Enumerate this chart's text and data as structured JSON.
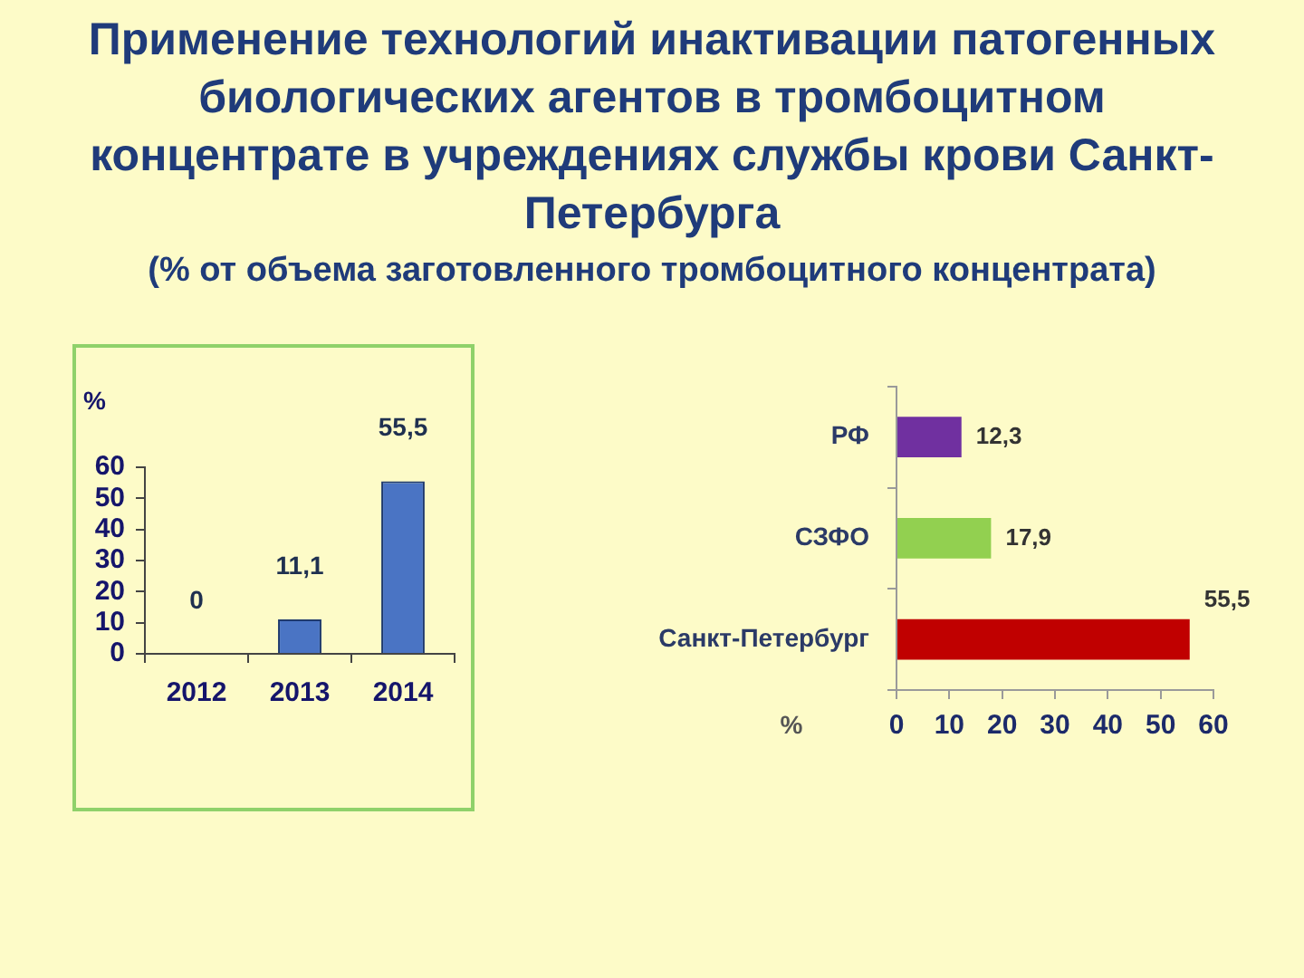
{
  "chart_data": [
    {
      "type": "bar",
      "title": "Применение технологий инактивации патогенных биологических агентов в тромбоцитном концентрате в учреждениях службы крови Санкт-Петербурга",
      "subtitle": "(% от объема заготовленного тромбоцитного концентрата)",
      "ylabel": "%",
      "categories": [
        "2012",
        "2013",
        "2014"
      ],
      "values": [
        0,
        11.1,
        55.5
      ],
      "color": "#4a74c4",
      "value_labels": [
        "0",
        "11,1",
        "55,5"
      ],
      "ylim": [
        0,
        60
      ],
      "yticks": [
        0,
        10,
        20,
        30,
        40,
        50,
        60
      ]
    },
    {
      "type": "bar",
      "orientation": "horizontal",
      "xlabel": "%",
      "categories": [
        "РФ",
        "СЗФО",
        "Санкт-Петербург"
      ],
      "values": [
        12.3,
        17.9,
        55.5
      ],
      "colors": [
        "#7030a0",
        "#92d050",
        "#c00000"
      ],
      "value_labels": [
        "12,3",
        "17,9",
        "55,5"
      ],
      "xlim": [
        0,
        60
      ],
      "xticks": [
        0,
        10,
        20,
        30,
        40,
        50,
        60
      ]
    }
  ]
}
